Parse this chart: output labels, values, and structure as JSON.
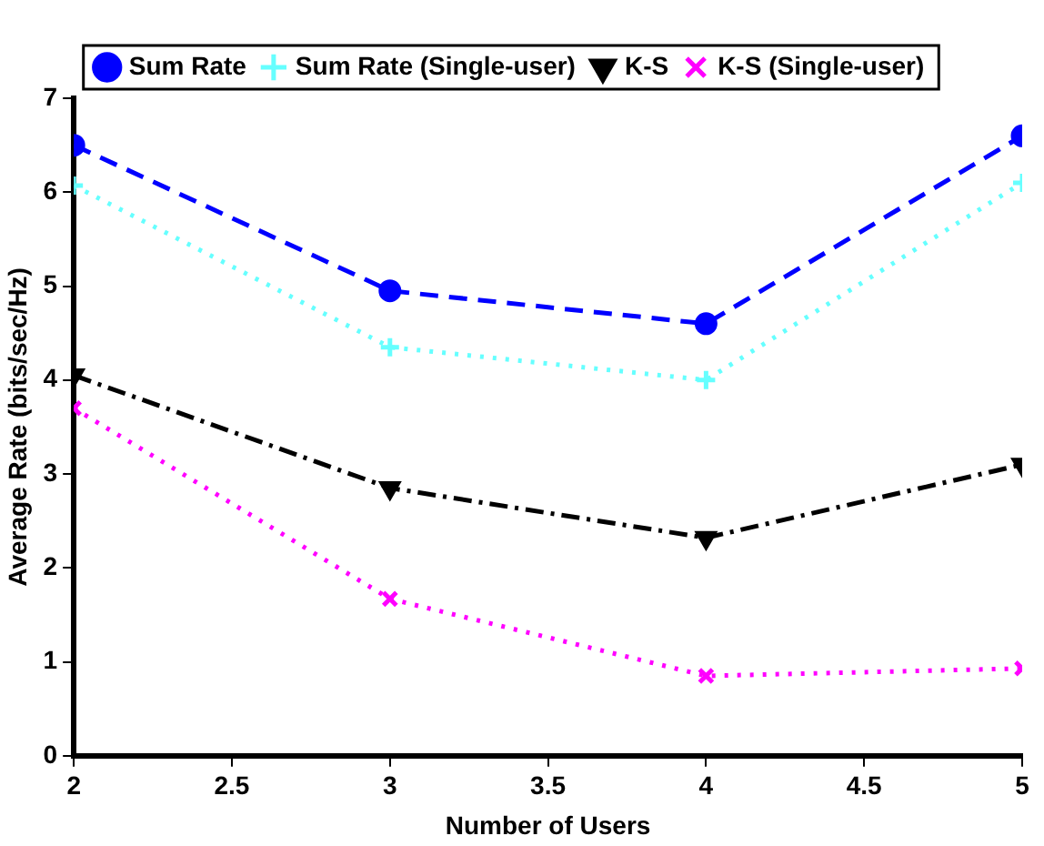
{
  "chart_data": {
    "type": "line",
    "xlabel": "Number of Users",
    "ylabel": "Average Rate (bits/sec/Hz)",
    "x": [
      2,
      3,
      4,
      5
    ],
    "xlim": [
      2,
      5
    ],
    "xticks": [
      2,
      2.5,
      3,
      3.5,
      4,
      4.5,
      5
    ],
    "ylim": [
      0,
      7
    ],
    "yticks": [
      0,
      1,
      2,
      3,
      4,
      5,
      6,
      7
    ],
    "grid": false,
    "legend": "top",
    "series": [
      {
        "name": "Sum Rate",
        "color": "#0000ff",
        "values": [
          6.5,
          4.95,
          4.6,
          6.6
        ],
        "marker": "circle",
        "line_style": "dashed"
      },
      {
        "name": "Sum Rate (Single-user)",
        "color": "#66ffff",
        "values": [
          6.07,
          4.35,
          4.0,
          6.1
        ],
        "marker": "cross",
        "line_style": "dotted"
      },
      {
        "name": "K-S",
        "color": "#000000",
        "values": [
          4.05,
          2.85,
          2.32,
          3.1
        ],
        "marker": "triangle",
        "line_style": "dashdot"
      },
      {
        "name": "K-S (Single-user)",
        "color": "#ff00ff",
        "values": [
          3.7,
          1.67,
          0.85,
          0.93
        ],
        "marker": "x",
        "line_style": "dotted"
      }
    ]
  }
}
